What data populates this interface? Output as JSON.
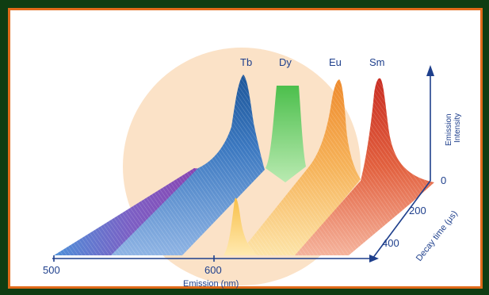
{
  "colors": {
    "background": "#0f3d12",
    "frame_border": "#e06a1a",
    "halo": "#fbe2c7",
    "axis": "#1e3f8c",
    "purple": "#7b4fb0",
    "tb": "#2f6fb5",
    "dy": "#5ec45e",
    "eu": "#f19a3c",
    "sm": "#d8402e"
  },
  "chart_data": {
    "type": "area",
    "projection": "3d-waterfall",
    "element_labels": [
      "Tb",
      "Dy",
      "Eu",
      "Sm"
    ],
    "x_axis": {
      "label": "Emission (nm)",
      "ticks": [
        "500",
        "600"
      ],
      "range": [
        500,
        650
      ]
    },
    "y_axis": {
      "label": "Decay time (μs)",
      "ticks": [
        "0",
        "200",
        "400"
      ],
      "range": [
        0,
        500
      ]
    },
    "z_axis": {
      "label_line1": "Emission",
      "label_line2": "Intensity"
    },
    "series": [
      {
        "name": "Tb",
        "peak_nm": 545,
        "relative_peak": 1.0,
        "decay_persistence": "long"
      },
      {
        "name": "Dy",
        "peak_nm": 575,
        "relative_peak": 0.95,
        "decay_persistence": "short"
      },
      {
        "name": "Eu",
        "peak_nm": 612,
        "relative_peak": 1.0,
        "decay_persistence": "long"
      },
      {
        "name": "Sm",
        "peak_nm": 645,
        "relative_peak": 1.0,
        "decay_persistence": "long"
      }
    ]
  }
}
